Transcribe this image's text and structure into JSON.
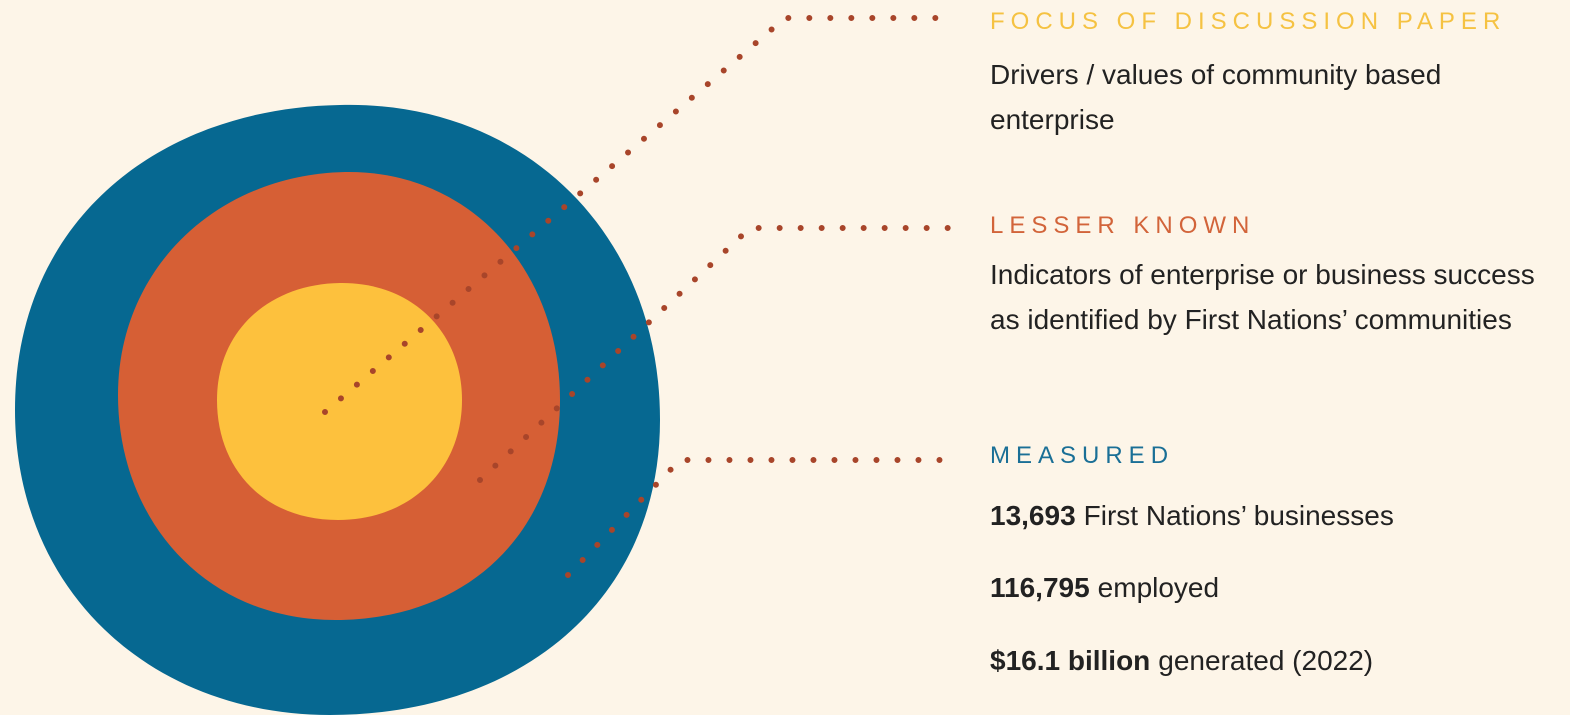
{
  "sections": [
    {
      "heading": "FOCUS OF DISCUSSION PAPER",
      "description": "Drivers / values of community based enterprise"
    },
    {
      "heading": "LESSER KNOWN",
      "description": "Indicators of enterprise or business success as identified by First Nations’ communities"
    },
    {
      "heading": "MEASURED",
      "stats": [
        {
          "bold": "13,693",
          "text": "First Nations’ businesses"
        },
        {
          "bold": "116,795",
          "text": "employed"
        },
        {
          "bold": "$16.1 billion",
          "text": "generated (2022)"
        }
      ]
    }
  ]
}
